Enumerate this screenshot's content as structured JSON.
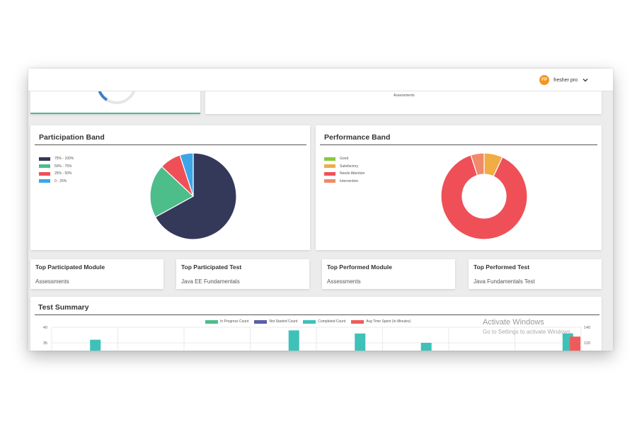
{
  "user": {
    "initials": "FP",
    "name": "fresher pro"
  },
  "top_cards": {
    "right_label": "Assessments"
  },
  "participation_band": {
    "title": "Participation Band",
    "legend": [
      {
        "label": "75% - 100%",
        "color": "#34395a"
      },
      {
        "label": "50% - 75%",
        "color": "#4dbd8a"
      },
      {
        "label": "25% - 50%",
        "color": "#ef5058"
      },
      {
        "label": "0 - 25%",
        "color": "#3da6e6"
      }
    ]
  },
  "performance_band": {
    "title": "Performance Band",
    "legend": [
      {
        "label": "Good",
        "color": "#8dc63f"
      },
      {
        "label": "Satisfactory",
        "color": "#f2ac44"
      },
      {
        "label": "Needs Attention",
        "color": "#ef5058"
      },
      {
        "label": "Intervention",
        "color": "#f08a6a"
      }
    ]
  },
  "stats": [
    {
      "title": "Top Participated Module",
      "value": "Assessments"
    },
    {
      "title": "Top Participated Test",
      "value": "Java EE Fundamentals"
    },
    {
      "title": "Top Performed Module",
      "value": "Assessments"
    },
    {
      "title": "Top Performed Test",
      "value": "Java Fundamentals Test"
    }
  ],
  "test_summary": {
    "title": "Test Summary",
    "legend": [
      {
        "label": "In Progress Count",
        "color": "#4dbd8a"
      },
      {
        "label": "Not Started Count",
        "color": "#5b5ea6"
      },
      {
        "label": "Completed Count",
        "color": "#3ec1b8"
      },
      {
        "label": "Avg Time Spent (In Minutes)",
        "color": "#ef5b5b"
      }
    ]
  },
  "chart_data": [
    {
      "type": "pie",
      "title": "Participation Band",
      "categories": [
        "75% - 100%",
        "50% - 75%",
        "25% - 50%",
        "0 - 25%"
      ],
      "values": [
        67,
        20,
        8,
        5
      ],
      "colors": [
        "#34395a",
        "#4dbd8a",
        "#ef5058",
        "#3da6e6"
      ],
      "legend": "top-left"
    },
    {
      "type": "pie",
      "title": "Performance Band",
      "donut": true,
      "categories": [
        "Good",
        "Satisfactory",
        "Needs Attention",
        "Intervention"
      ],
      "values": [
        0,
        7,
        88,
        5
      ],
      "colors": [
        "#8dc63f",
        "#f2ac44",
        "#ef5058",
        "#f08a6a"
      ],
      "legend": "top-left"
    },
    {
      "type": "bar",
      "title": "Test Summary",
      "y_ticks_left": [
        "40",
        "35"
      ],
      "y_ticks_right": [
        "140",
        "120"
      ],
      "ylim_left_visible": [
        34,
        40
      ],
      "grid": true,
      "legend": "top-center",
      "series": [
        {
          "name": "Completed Count",
          "color": "#3ec1b8",
          "points": [
            {
              "group": 1,
              "value": 36
            },
            {
              "group": 4,
              "value": 39
            },
            {
              "group": 5,
              "value": 38
            },
            {
              "group": 6,
              "value": 35
            },
            {
              "group": 8,
              "value": 38
            }
          ]
        },
        {
          "name": "Avg Time Spent (In Minutes)",
          "color": "#ef5b5b",
          "points": [
            {
              "group": 8,
              "value": 37
            }
          ]
        }
      ],
      "groups": 8
    }
  ],
  "watermark": {
    "title": "Activate Windows",
    "subtitle": "Go to Settings to activate Windows."
  }
}
